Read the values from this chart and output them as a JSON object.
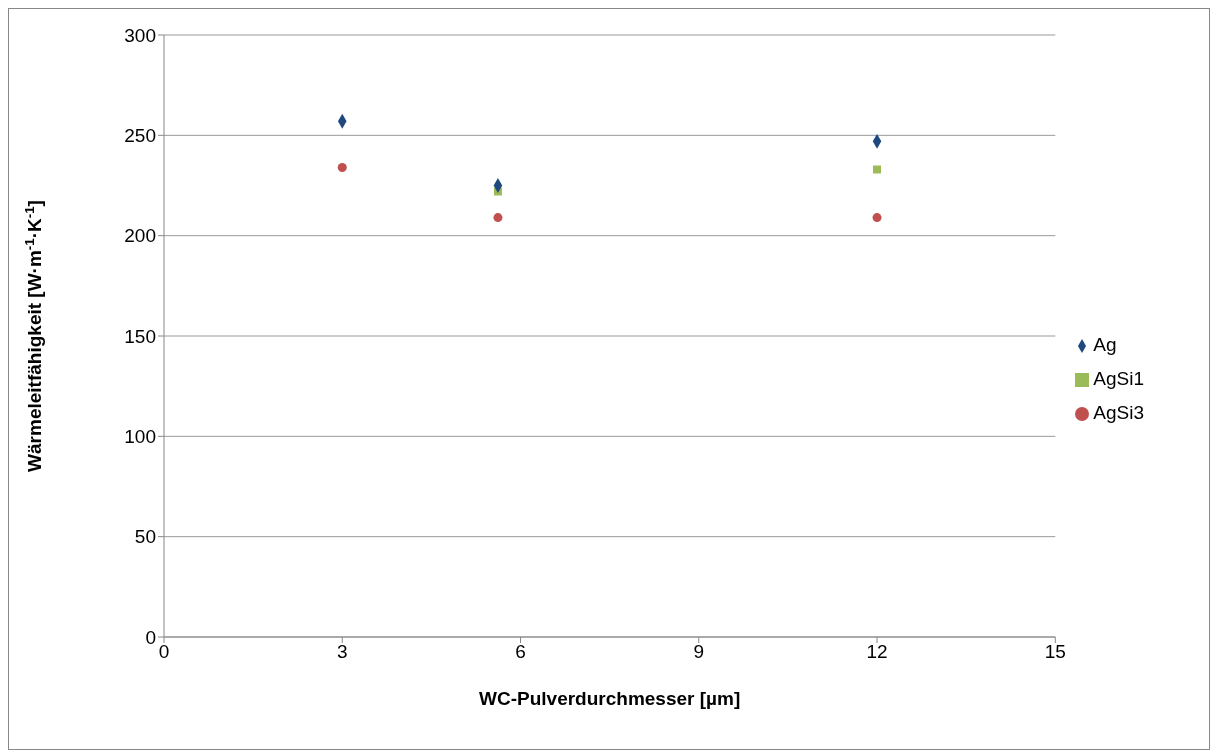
{
  "chart_data": {
    "type": "scatter",
    "xlabel": "WC-Pulverdurchmesser [µm]",
    "ylabel": "Wärmeleitfähigkeit [W·m$^{-1}$·K$^{-1}$]",
    "xlim": [
      0,
      15
    ],
    "xticks": [
      0,
      3,
      6,
      9,
      12,
      15
    ],
    "ylim": [
      0,
      300
    ],
    "yticks": [
      0,
      50,
      100,
      150,
      200,
      250,
      300
    ],
    "grid": "y",
    "legend": "right",
    "series": [
      {
        "name": "AgSi3",
        "color": "#c0504d",
        "marker": "circle",
        "x": [
          3,
          5.62,
          12
        ],
        "values": [
          234,
          209,
          209
        ]
      },
      {
        "name": "AgSi1",
        "color": "#9bbb59",
        "marker": "square",
        "x": [
          5.62,
          12
        ],
        "values": [
          222,
          233
        ]
      },
      {
        "name": "Ag",
        "color": "#1f497d",
        "marker": "diamond",
        "x": [
          3,
          5.62,
          12
        ],
        "values": [
          257,
          225,
          247
        ]
      }
    ]
  }
}
